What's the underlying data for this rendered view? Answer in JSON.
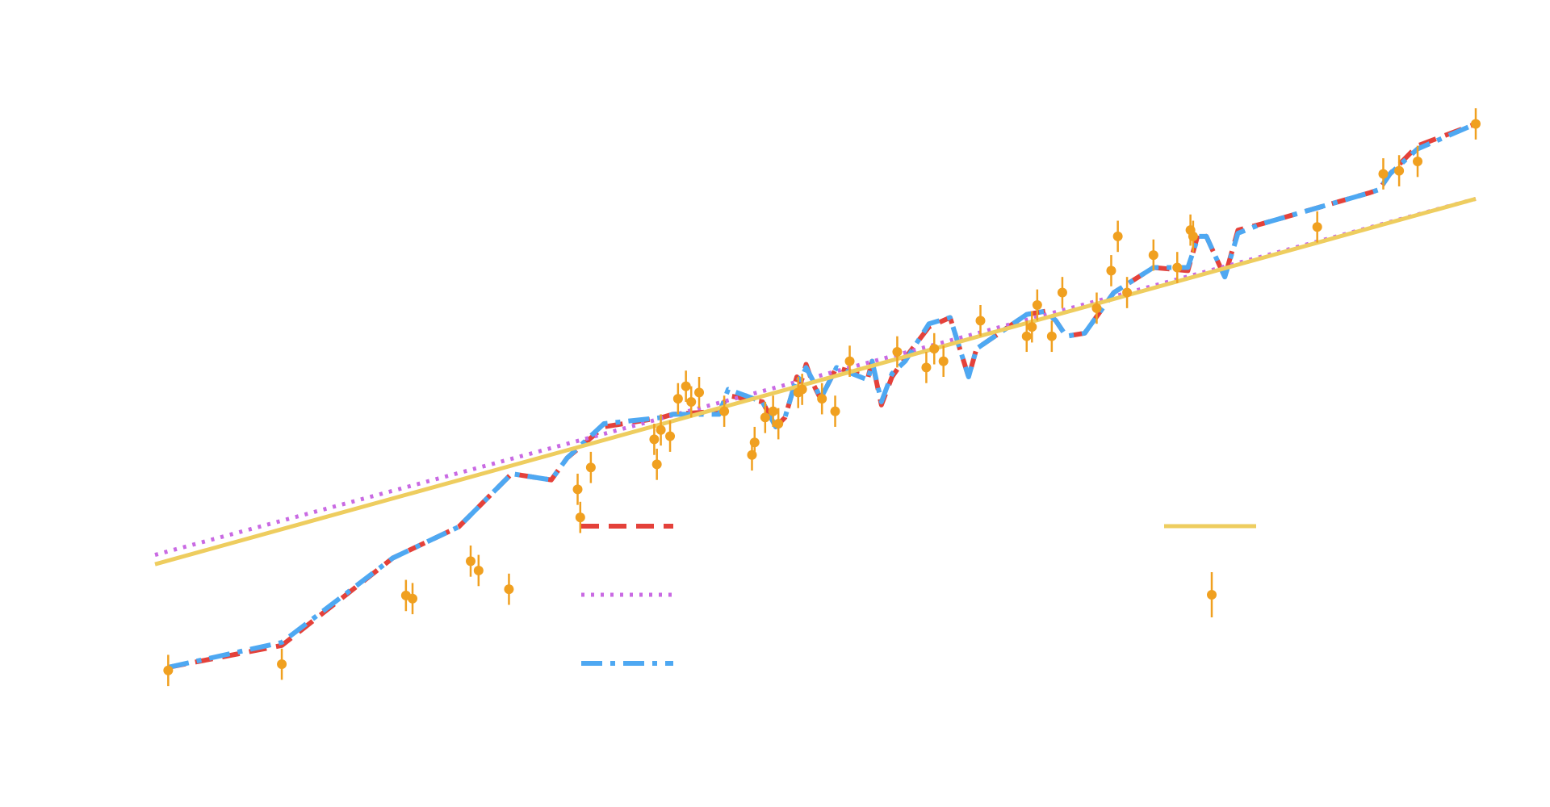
{
  "chart_data": {
    "type": "line",
    "title": "",
    "xlabel": "",
    "ylabel": "",
    "grid": false,
    "legend_position": "lower-center",
    "xlim": [
      0,
      100
    ],
    "ylim": [
      0,
      100
    ],
    "colors": {
      "fit_a": "#e4413a",
      "fit_b": "#c96ae3",
      "fit_c": "#4ea8f2",
      "linear": "#eecd5f",
      "data": "#f0a020"
    },
    "series": [
      {
        "key": "fit_a",
        "style": "dashed",
        "x": [
          1.0,
          9.6,
          18.0,
          23.0,
          27.0,
          30.0,
          31.2,
          34.0,
          38.4,
          39.2,
          42.7,
          43.4,
          46.0,
          47.0,
          47.7,
          48.6,
          48.9,
          49.3,
          49.8,
          50.4,
          51.6,
          54.0,
          54.3,
          55.0,
          55.8,
          56.8,
          58.6,
          60.2,
          61.6,
          62.2,
          66.0,
          67.4,
          68.2,
          69.0,
          70.4,
          72.6,
          75.6,
          78.2,
          79.0,
          79.6,
          81.0,
          82.0,
          83.8,
          92.0,
          92.7,
          93.5,
          95.6,
          100.0
        ],
        "y": [
          3.5,
          7.0,
          21.0,
          26.0,
          34.5,
          33.5,
          37.0,
          42.0,
          43.5,
          44.0,
          44.5,
          47.0,
          46.0,
          42.0,
          43.5,
          50.0,
          49.0,
          52.0,
          49.0,
          46.5,
          51.5,
          50.0,
          52.5,
          45.5,
          50.0,
          53.0,
          58.0,
          59.5,
          50.0,
          54.5,
          60.0,
          60.5,
          59.0,
          56.5,
          57.0,
          63.5,
          67.5,
          67.0,
          73.0,
          72.5,
          66.0,
          73.5,
          74.5,
          79.5,
          80.0,
          82.5,
          87.0,
          90.5
        ]
      },
      {
        "key": "fit_b",
        "style": "dotted",
        "x": [
          0.0,
          100.0
        ],
        "y": [
          21.5,
          78.5
        ]
      },
      {
        "key": "fit_c",
        "style": "dashdot",
        "x": [
          1.0,
          9.6,
          18.0,
          23.0,
          27.0,
          30.0,
          31.2,
          34.0,
          38.4,
          39.2,
          42.7,
          43.4,
          46.0,
          47.0,
          47.7,
          48.6,
          48.9,
          49.3,
          49.8,
          50.4,
          51.6,
          54.0,
          54.3,
          55.0,
          55.8,
          56.8,
          58.6,
          60.2,
          61.6,
          62.2,
          66.0,
          67.4,
          68.2,
          69.0,
          70.4,
          72.6,
          75.6,
          78.2,
          79.0,
          79.6,
          81.0,
          82.0,
          83.8,
          92.0,
          92.7,
          93.5,
          95.6,
          100.0
        ],
        "y": [
          3.5,
          7.5,
          21.0,
          26.0,
          34.5,
          33.5,
          37.0,
          42.5,
          43.5,
          44.0,
          44.0,
          48.0,
          46.0,
          42.0,
          43.5,
          50.0,
          49.5,
          51.5,
          49.5,
          46.5,
          51.5,
          49.5,
          52.5,
          46.0,
          50.5,
          52.5,
          58.5,
          59.5,
          50.0,
          54.5,
          60.0,
          60.5,
          59.0,
          56.5,
          57.0,
          63.5,
          67.5,
          67.5,
          72.5,
          72.5,
          66.0,
          73.0,
          74.5,
          79.5,
          80.0,
          82.5,
          86.5,
          90.5
        ]
      },
      {
        "key": "linear",
        "style": "solid",
        "x": [
          0.0,
          100.0
        ],
        "y": [
          20.0,
          78.5
        ]
      }
    ],
    "scatter": {
      "key": "data",
      "x": [
        1.0,
        9.6,
        19.0,
        19.5,
        23.9,
        24.5,
        26.8,
        32.0,
        32.2,
        33.0,
        37.8,
        38.0,
        38.3,
        39.0,
        39.6,
        40.2,
        40.6,
        41.2,
        43.1,
        45.2,
        45.4,
        46.2,
        46.8,
        47.2,
        48.7,
        49.0,
        50.5,
        51.5,
        52.6,
        56.2,
        58.4,
        59.0,
        59.7,
        62.5,
        66.0,
        66.4,
        66.8,
        67.9,
        68.7,
        71.3,
        72.4,
        72.9,
        73.6,
        75.6,
        77.4,
        78.4,
        78.6,
        88.0,
        93.0,
        94.2,
        95.6,
        100.0
      ],
      "y": [
        3.0,
        4.0,
        15.0,
        14.5,
        20.5,
        19.0,
        16.0,
        32.0,
        27.5,
        35.5,
        40.0,
        36.0,
        41.5,
        40.5,
        46.5,
        48.5,
        46.0,
        47.5,
        44.5,
        37.5,
        39.5,
        43.5,
        44.5,
        42.5,
        47.5,
        48.0,
        46.5,
        44.5,
        52.5,
        54.0,
        51.5,
        54.5,
        52.5,
        59.0,
        56.5,
        58.0,
        61.5,
        56.5,
        63.5,
        61.0,
        67.0,
        72.5,
        63.5,
        69.5,
        67.5,
        73.5,
        72.5,
        74.0,
        82.5,
        83.0,
        84.5,
        90.5
      ],
      "yerr": [
        2.5,
        2.5,
        2.5,
        2.5,
        2.5,
        2.5,
        2.5,
        2.5,
        2.5,
        2.5,
        2.5,
        2.5,
        2.5,
        2.5,
        2.5,
        2.5,
        2.5,
        2.5,
        2.5,
        2.5,
        2.5,
        2.5,
        2.5,
        2.5,
        2.5,
        2.5,
        2.5,
        2.5,
        2.5,
        2.5,
        2.5,
        2.5,
        2.5,
        2.5,
        2.5,
        2.5,
        2.5,
        2.5,
        2.5,
        2.5,
        2.5,
        2.5,
        2.5,
        2.5,
        2.5,
        2.5,
        2.5,
        2.5,
        2.5,
        2.5,
        2.5,
        2.5
      ]
    }
  }
}
